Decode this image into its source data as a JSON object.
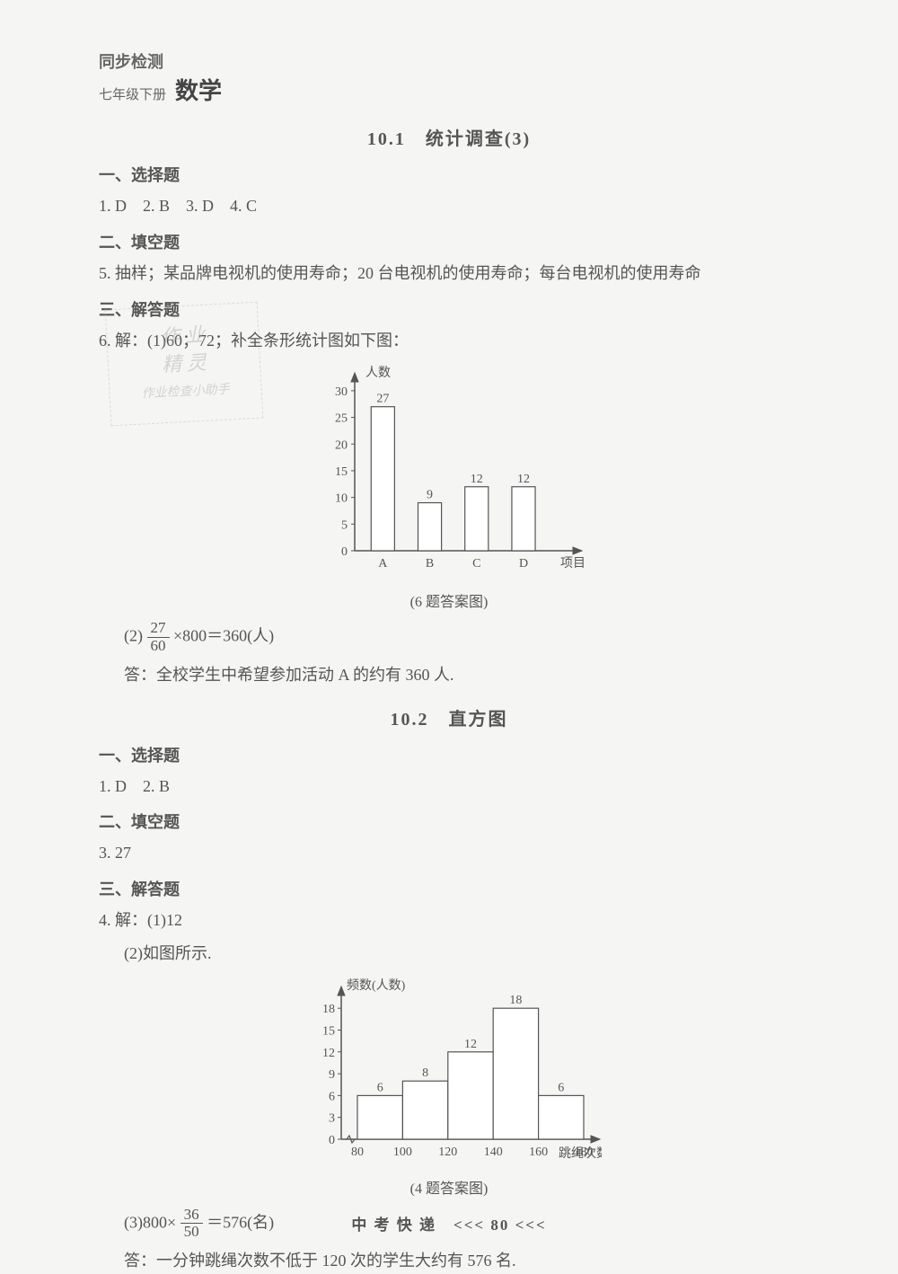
{
  "header": {
    "line1": "同步检测",
    "line2": "七年级下册",
    "subject": "数学"
  },
  "section1": {
    "title": "10.1　统计调查(3)",
    "sub1_title": "一、选择题",
    "answers1": "1. D　2. B　3. D　4. C",
    "sub2_title": "二、填空题",
    "ans5": "5. 抽样；某品牌电视机的使用寿命；20 台电视机的使用寿命；每台电视机的使用寿命",
    "sub3_title": "三、解答题",
    "ans6_intro": "6. 解：(1)60；72；补全条形统计图如下图：",
    "chart1": {
      "type": "bar",
      "y_label": "人数",
      "x_label": "项目",
      "categories": [
        "A",
        "B",
        "C",
        "D"
      ],
      "values": [
        27,
        9,
        12,
        12
      ],
      "value_labels": [
        "27",
        "9",
        "12",
        "12"
      ],
      "y_ticks": [
        0,
        5,
        10,
        15,
        20,
        25,
        30
      ],
      "ylim": [
        0,
        32
      ],
      "bar_color": "#ffffff",
      "bar_border": "#555555",
      "axis_color": "#555555",
      "background_color": "#f5f5f3",
      "bar_width": 0.5,
      "fontsize": 14,
      "caption": "(6 题答案图)"
    },
    "ans6_part2_prefix": "(2)",
    "ans6_frac_num": "27",
    "ans6_frac_den": "60",
    "ans6_part2_suffix": "×800＝360(人)",
    "ans6_conclusion": "答：全校学生中希望参加活动 A 的约有 360 人."
  },
  "section2": {
    "title": "10.2　直方图",
    "sub1_title": "一、选择题",
    "answers1": "1. D　2. B",
    "sub2_title": "二、填空题",
    "ans3": "3. 27",
    "sub3_title": "三、解答题",
    "ans4_part1": "4. 解：(1)12",
    "ans4_part2": "(2)如图所示.",
    "chart2": {
      "type": "histogram",
      "y_label": "频数(人数)",
      "x_label": "跳绳次数",
      "bin_edges": [
        80,
        100,
        120,
        140,
        160,
        180
      ],
      "values": [
        6,
        8,
        12,
        18,
        6
      ],
      "value_labels": [
        "6",
        "8",
        "12",
        "18",
        "6"
      ],
      "y_ticks": [
        0,
        3,
        6,
        9,
        12,
        15,
        18
      ],
      "ylim": [
        0,
        20
      ],
      "bar_color": "#ffffff",
      "bar_border": "#555555",
      "axis_color": "#555555",
      "background_color": "#f5f5f3",
      "fontsize": 14,
      "caption": "(4 题答案图)"
    },
    "ans4_part3_prefix": "(3)800×",
    "ans4_frac_num": "36",
    "ans4_frac_den": "50",
    "ans4_part3_suffix": "＝576(名)",
    "ans4_conclusion": "答：一分钟跳绳次数不低于 120 次的学生大约有 576 名."
  },
  "footer": "中 考 快 递　<<< 80 <<<",
  "watermark": {
    "l1": "作 业",
    "l2": "精 灵",
    "l3": "作业检查小助手"
  }
}
